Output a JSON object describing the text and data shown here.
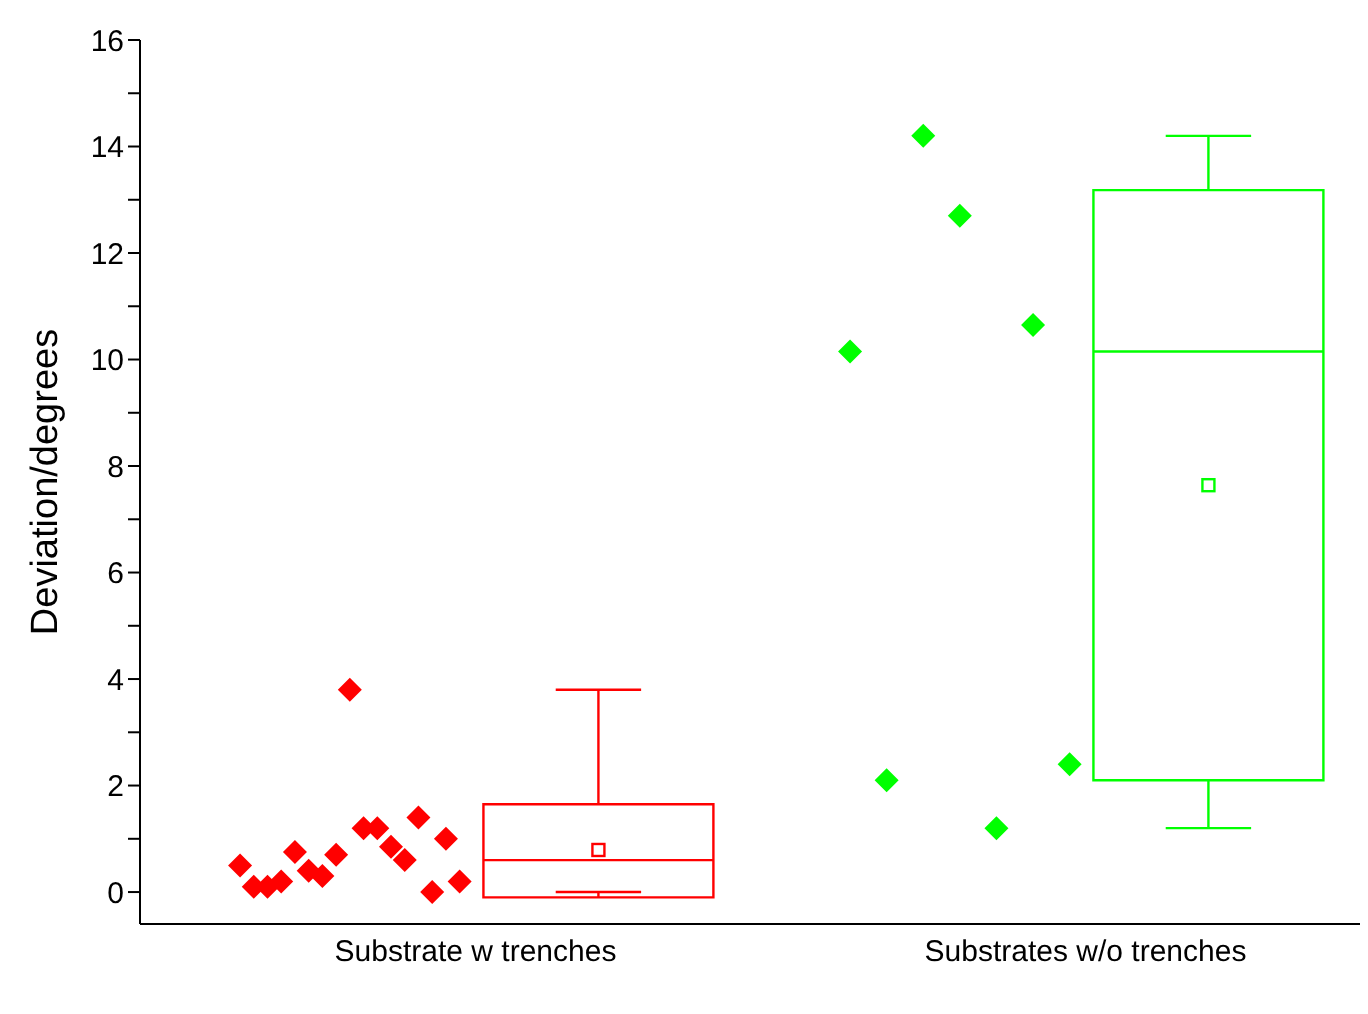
{
  "chart_data": {
    "type": "box",
    "ylabel": "Deviation/degrees",
    "categories": [
      "Substrate w trenches",
      "Substrates w/o trenches"
    ],
    "ylim": [
      -0.6,
      16
    ],
    "yticks": [
      0,
      {
        "value": 1,
        "label": null
      },
      2,
      {
        "value": 3,
        "label": null
      },
      4,
      {
        "value": 5,
        "label": null
      },
      6,
      {
        "value": 7,
        "label": null
      },
      8,
      {
        "value": 9,
        "label": null
      },
      10,
      {
        "value": 11,
        "label": null
      },
      12,
      {
        "value": 13,
        "label": null
      },
      14,
      {
        "value": 15,
        "label": null
      },
      16
    ],
    "grid": false,
    "legend": false,
    "series": [
      {
        "type": "box",
        "colors": [
          "#ff0000",
          "#00ff00"
        ],
        "boxes": [
          {
            "low": 0,
            "q1": -0.1,
            "median": 0.6,
            "q3": 1.65,
            "high": 3.8,
            "mean": 0.79
          },
          {
            "low": 1.2,
            "q1": 2.1,
            "median": 10.15,
            "q3": 13.18,
            "high": 14.2,
            "mean": 7.64
          }
        ]
      },
      {
        "type": "scatter",
        "marker": "diamond",
        "x": [
          "Substrate w trenches",
          "Substrate w trenches",
          "Substrate w trenches",
          "Substrate w trenches",
          "Substrate w trenches",
          "Substrate w trenches",
          "Substrate w trenches",
          "Substrate w trenches",
          "Substrate w trenches",
          "Substrate w trenches",
          "Substrate w trenches",
          "Substrate w trenches",
          "Substrate w trenches",
          "Substrate w trenches",
          "Substrate w trenches",
          "Substrate w trenches",
          "Substrate w trenches",
          "Substrates w/o trenches",
          "Substrates w/o trenches",
          "Substrates w/o trenches",
          "Substrates w/o trenches",
          "Substrates w/o trenches",
          "Substrates w/o trenches",
          "Substrates w/o trenches"
        ],
        "values": [
          0.5,
          0.1,
          0.1,
          0.2,
          0.75,
          0.4,
          0.3,
          0.7,
          3.8,
          1.2,
          1.2,
          0.85,
          0.6,
          1.4,
          0,
          1,
          0.2,
          10.15,
          2.1,
          14.2,
          12.7,
          1.2,
          10.65,
          2.4
        ],
        "colors": [
          "#ff0000",
          "#ff0000",
          "#ff0000",
          "#ff0000",
          "#ff0000",
          "#ff0000",
          "#ff0000",
          "#ff0000",
          "#ff0000",
          "#ff0000",
          "#ff0000",
          "#ff0000",
          "#ff0000",
          "#ff0000",
          "#ff0000",
          "#ff0000",
          "#ff0000",
          "#00ff00",
          "#00ff00",
          "#00ff00",
          "#00ff00",
          "#00ff00",
          "#00ff00",
          "#00ff00"
        ]
      }
    ]
  }
}
